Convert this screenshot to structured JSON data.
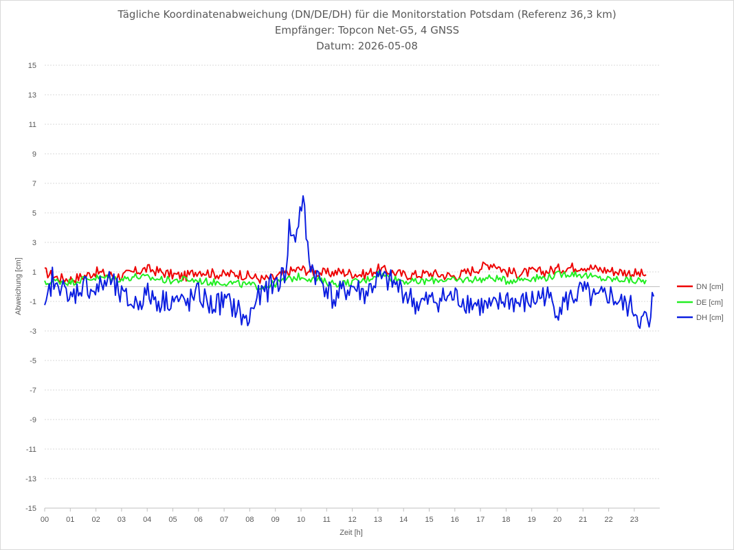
{
  "chart": {
    "title": "Tägliche Koordinatenabweichung (DN/DE/DH) für die Monitorstation Potsdam (Referenz 36,3 km)",
    "subtitle1": "Empfänger: Topcon Net-G5, 4 GNSS",
    "subtitle2": "Datum: 2026-05-08"
  },
  "chart_data": {
    "type": "line",
    "title": "Tägliche Koordinatenabweichung (DN/DE/DH) für die Monitorstation Potsdam (Referenz 36,3 km)",
    "xlabel": "Zeit [h]",
    "ylabel": "Abweichung [cm]",
    "xlim": [
      0,
      23.5
    ],
    "ylim": [
      -15,
      15
    ],
    "x_ticks": [
      "00",
      "01",
      "02",
      "03",
      "04",
      "05",
      "06",
      "07",
      "08",
      "09",
      "10",
      "11",
      "12",
      "13",
      "14",
      "15",
      "16",
      "17",
      "18",
      "19",
      "20",
      "21",
      "22",
      "23"
    ],
    "y_ticks": [
      "15",
      "13",
      "11",
      "9",
      "7",
      "5",
      "3",
      "1",
      "-1",
      "-3",
      "-5",
      "-7",
      "-9",
      "-11",
      "-13",
      "-15"
    ],
    "grid": true,
    "legend_position": "right",
    "x_unit": "h",
    "series": [
      {
        "name": "DN [cm]",
        "color": "#ee0000",
        "x": [
          0,
          0.5,
          1,
          1.5,
          2,
          2.5,
          3,
          3.5,
          4,
          4.5,
          5,
          5.5,
          6,
          6.5,
          7,
          7.5,
          8,
          8.5,
          9,
          9.5,
          10,
          10.5,
          11,
          11.5,
          12,
          12.5,
          13,
          13.5,
          14,
          14.5,
          15,
          15.5,
          16,
          16.5,
          17,
          17.5,
          18,
          18.5,
          19,
          19.5,
          20,
          20.5,
          21,
          21.5,
          22,
          22.5,
          23,
          23.5
        ],
        "values": [
          1.0,
          0.6,
          0.5,
          0.7,
          1.0,
          0.8,
          0.7,
          1.0,
          1.2,
          1.0,
          0.8,
          0.7,
          1.1,
          0.9,
          0.8,
          0.9,
          0.7,
          0.5,
          0.6,
          1.0,
          1.2,
          1.0,
          0.9,
          1.0,
          0.9,
          0.8,
          1.2,
          1.0,
          0.8,
          0.8,
          0.9,
          0.8,
          0.7,
          1.0,
          1.3,
          1.6,
          1.0,
          0.9,
          1.0,
          1.0,
          1.2,
          1.3,
          1.4,
          1.2,
          1.1,
          1.0,
          0.9,
          0.8
        ]
      },
      {
        "name": "DE [cm]",
        "color": "#22ee22",
        "x": [
          0,
          0.5,
          1,
          1.5,
          2,
          2.5,
          3,
          3.5,
          4,
          4.5,
          5,
          5.5,
          6,
          6.5,
          7,
          7.5,
          8,
          8.5,
          9,
          9.5,
          10,
          10.5,
          11,
          11.5,
          12,
          12.5,
          13,
          13.5,
          14,
          14.5,
          15,
          15.5,
          16,
          16.5,
          17,
          17.5,
          18,
          18.5,
          19,
          19.5,
          20,
          20.5,
          21,
          21.5,
          22,
          22.5,
          23,
          23.5
        ],
        "values": [
          0.2,
          0.4,
          0.3,
          0.5,
          0.6,
          0.6,
          0.5,
          0.7,
          0.6,
          0.5,
          0.4,
          0.5,
          0.4,
          0.3,
          0.3,
          0.2,
          0.1,
          0.0,
          0.2,
          0.5,
          0.7,
          0.5,
          0.3,
          0.2,
          0.3,
          0.4,
          0.9,
          0.6,
          0.4,
          0.3,
          0.4,
          0.5,
          0.4,
          0.5,
          0.5,
          0.6,
          0.4,
          0.5,
          0.6,
          0.6,
          0.8,
          0.9,
          0.8,
          0.6,
          0.5,
          0.5,
          0.4,
          0.4
        ]
      },
      {
        "name": "DH [cm]",
        "color": "#0b1ee0",
        "x": [
          0,
          0.1,
          0.3,
          0.5,
          0.7,
          0.9,
          1,
          1.5,
          2,
          2.5,
          3,
          3.5,
          4,
          4.5,
          5,
          5.5,
          6,
          6.5,
          7,
          7.5,
          7.9,
          8.2,
          8.5,
          9,
          9.2,
          9.4,
          9.55,
          9.7,
          9.8,
          9.9,
          10,
          10.1,
          10.2,
          10.3,
          10.5,
          10.8,
          11,
          11.3,
          11.5,
          12,
          12.5,
          13,
          13.5,
          14,
          14.5,
          15,
          15.5,
          16,
          16.5,
          17,
          17.5,
          18,
          18.5,
          19,
          19.5,
          20,
          20.5,
          21,
          21.5,
          22,
          22.5,
          23,
          23.3,
          23.5,
          23.6,
          23.7,
          23.8
        ],
        "values": [
          -2.0,
          -1.0,
          0.6,
          -0.5,
          1.0,
          -1.5,
          -0.8,
          0.2,
          -0.3,
          0.5,
          -0.7,
          -1.2,
          -0.5,
          -1.0,
          -0.8,
          -1.2,
          -0.5,
          -1.3,
          -1.0,
          -1.5,
          -2.5,
          -1.0,
          -0.5,
          0.3,
          0.5,
          1.0,
          4.2,
          3.0,
          3.5,
          4.5,
          5.5,
          5.7,
          3.5,
          2.0,
          1.0,
          0.3,
          0.0,
          -1.0,
          -0.5,
          0.0,
          -0.5,
          0.5,
          0.3,
          -0.3,
          -1.2,
          -1.0,
          -0.8,
          -0.7,
          -1.0,
          -1.3,
          -1.5,
          -0.8,
          -1.2,
          -1.0,
          -0.5,
          -1.5,
          -0.8,
          -0.3,
          -1.0,
          -0.5,
          -1.2,
          -1.5,
          -2.5,
          -2.0,
          -3.5,
          -1.0,
          -0.2
        ]
      }
    ]
  }
}
